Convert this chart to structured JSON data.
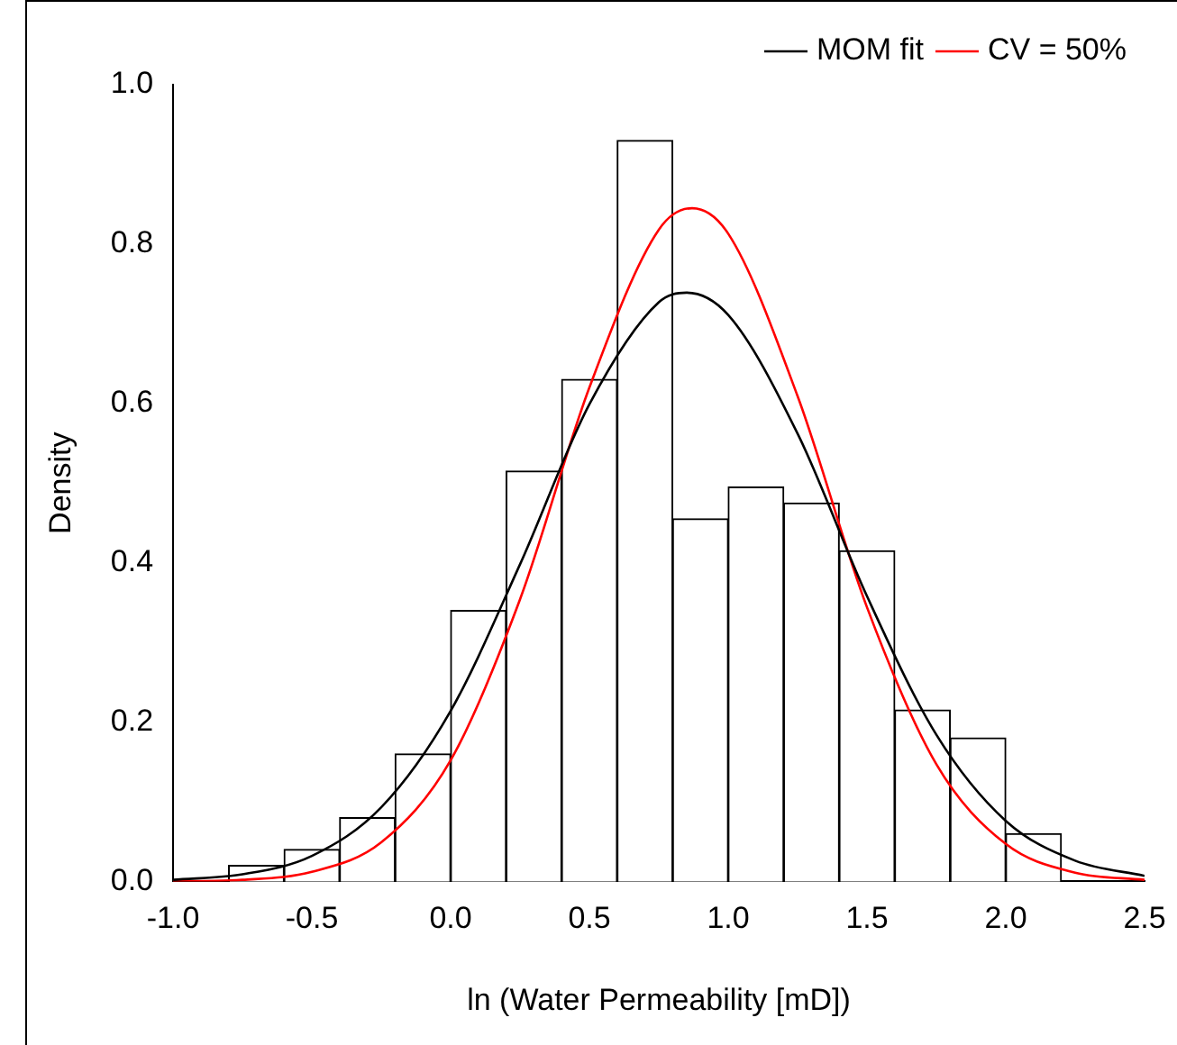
{
  "chart_data": {
    "type": "histogram",
    "xlabel": "ln (Water Permeability [mD])",
    "ylabel": "Density",
    "bins": [
      -0.8,
      -0.6,
      -0.4,
      -0.2,
      0,
      0.2,
      0.4,
      0.6,
      0.8,
      1.0,
      1.2,
      1.4,
      1.6,
      1.8,
      2.0,
      2.2
    ],
    "values": [
      0.02,
      0.04,
      0.08,
      0.16,
      0.34,
      0.515,
      0.63,
      0.93,
      0.455,
      0.495,
      0.475,
      0.415,
      0.215,
      0.18,
      0.06
    ],
    "color": "#ffffff",
    "series": [
      {
        "name": "MOM fit",
        "type": "line",
        "color": "#000000",
        "x": [
          -1,
          -0.75,
          -0.5,
          -0.25,
          0,
          0.25,
          0.5,
          0.75,
          0.85,
          1,
          1.25,
          1.5,
          1.75,
          2,
          2.25,
          2.5
        ],
        "values": [
          0.002,
          0.009,
          0.032,
          0.093,
          0.214,
          0.398,
          0.599,
          0.727,
          0.739,
          0.711,
          0.562,
          0.358,
          0.184,
          0.076,
          0.026,
          0.007
        ]
      },
      {
        "name": "CV = 50%",
        "type": "line",
        "color": "#ff0000",
        "x": [
          -1,
          -0.75,
          -0.5,
          -0.25,
          0,
          0.25,
          0.5,
          0.75,
          0.87,
          1,
          1.25,
          1.5,
          1.75,
          2,
          2.25,
          2.5
        ],
        "values": [
          0.0,
          0.002,
          0.012,
          0.049,
          0.152,
          0.354,
          0.62,
          0.818,
          0.845,
          0.813,
          0.609,
          0.344,
          0.147,
          0.047,
          0.011,
          0.002
        ]
      }
    ],
    "xlim": [
      -1.0,
      2.5
    ],
    "xticks": [
      {
        "value": -1,
        "label": "-1.0"
      },
      -0.5,
      {
        "value": 0,
        "label": "0.0"
      },
      0.5,
      {
        "value": 1,
        "label": "1.0"
      },
      1.5,
      {
        "value": 2,
        "label": "2.0"
      },
      2.5
    ],
    "ylim": [
      0,
      1.0
    ],
    "yticks": [
      {
        "value": 0,
        "label": "0.0"
      },
      0.2,
      0.4,
      0.6,
      0.8,
      {
        "value": 1,
        "label": "1.0"
      }
    ],
    "grid": false,
    "legend": "top right",
    "marker": "none",
    "line_style": "solid"
  }
}
